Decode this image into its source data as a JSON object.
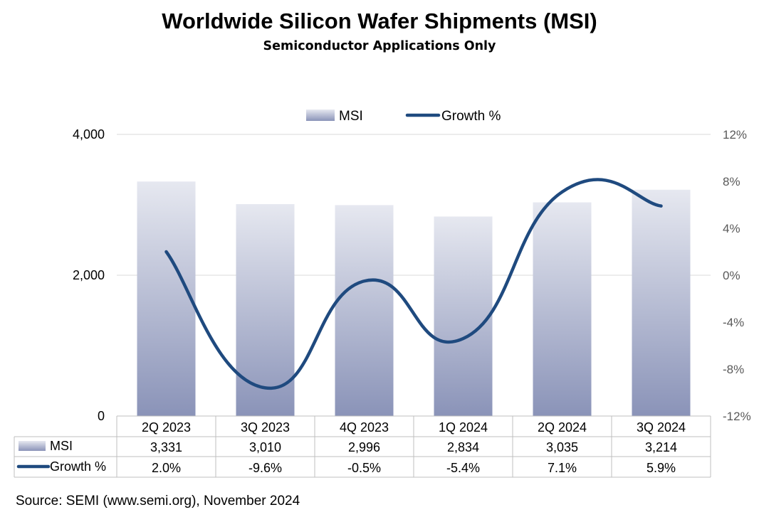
{
  "chart_data": {
    "type": "bar+line",
    "title": "Worldwide Silicon Wafer Shipments (MSI)",
    "subtitle": "Semiconductor Applications Only",
    "categories": [
      "2Q 2023",
      "3Q 2023",
      "4Q 2023",
      "1Q 2024",
      "2Q 2024",
      "3Q 2024"
    ],
    "series": [
      {
        "name": "MSI",
        "kind": "bar",
        "axis": "left",
        "values": [
          3331,
          3010,
          2996,
          2834,
          3035,
          3214
        ],
        "labels": [
          "3,331",
          "3,010",
          "2,996",
          "2,834",
          "3,035",
          "3,214"
        ]
      },
      {
        "name": "Growth %",
        "kind": "line",
        "axis": "right",
        "values": [
          2.0,
          -9.6,
          -0.5,
          -5.4,
          7.1,
          5.9
        ],
        "labels": [
          "2.0%",
          "-9.6%",
          "-0.5%",
          "-5.4%",
          "7.1%",
          "5.9%"
        ]
      }
    ],
    "left_axis": {
      "min": 0,
      "max": 4000,
      "ticks": [
        0,
        2000,
        4000
      ],
      "tick_labels": [
        "0",
        "2,000",
        "4,000"
      ]
    },
    "right_axis": {
      "min": -12,
      "max": 12,
      "ticks": [
        -12,
        -8,
        -4,
        0,
        4,
        8,
        12
      ],
      "tick_labels": [
        "-12%",
        "-8%",
        "-4%",
        "0%",
        "4%",
        "8%",
        "12%"
      ]
    },
    "legend": {
      "position": "top-center",
      "entries": [
        "MSI",
        "Growth %"
      ]
    },
    "colors": {
      "bar_top": "#e6e8f0",
      "bar_bottom": "#8a93b8",
      "line": "#1f4a7f",
      "grid": "#d9d9d9",
      "table": "#bfbfbf"
    },
    "source": "Source: SEMI (www.semi.org), November 2024"
  }
}
